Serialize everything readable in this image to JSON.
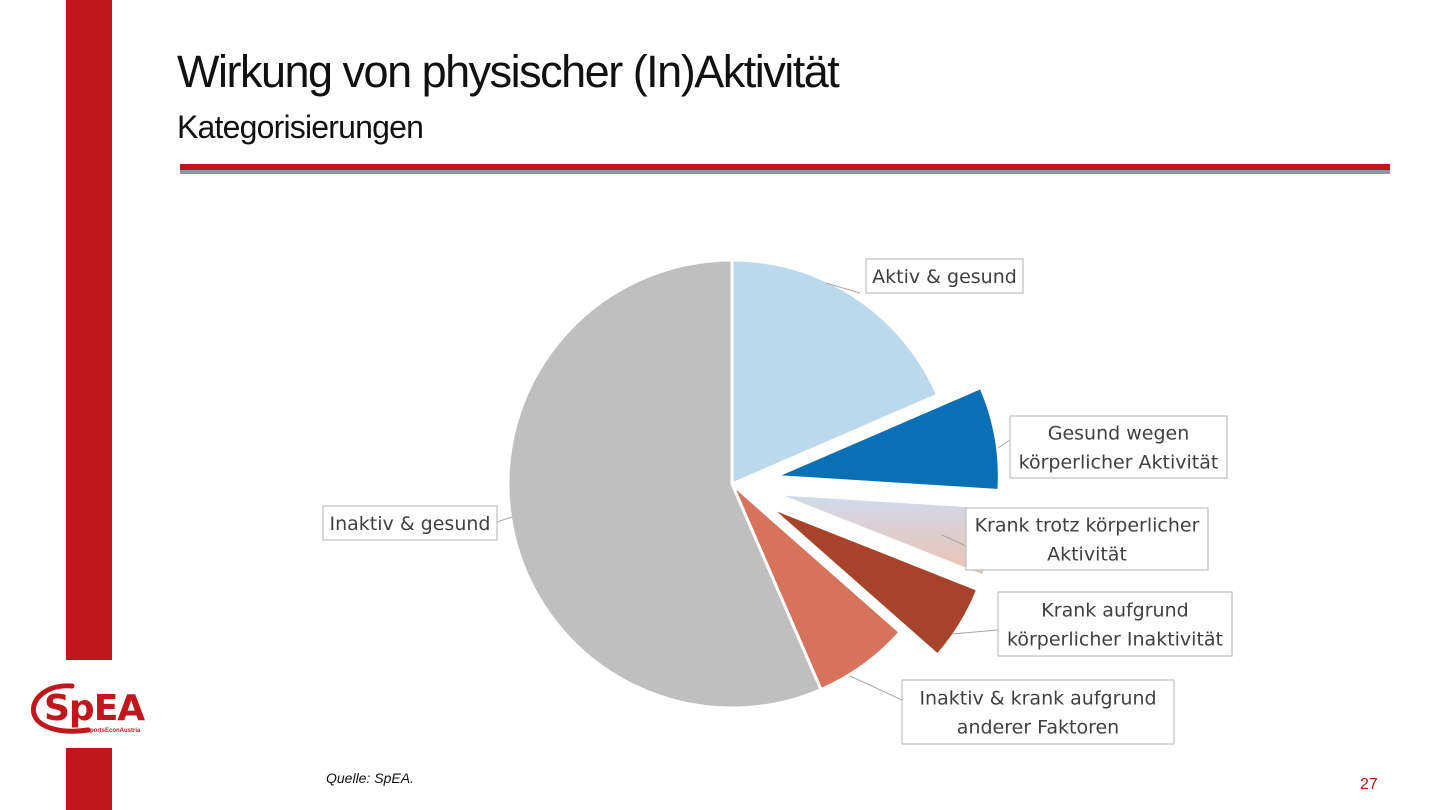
{
  "slide": {
    "title": "Wirkung von physischer (In)Aktivität",
    "subtitle": "Kategorisierungen",
    "source": "Quelle: SpEA.",
    "page_number": "27",
    "logo_text": "SpEA",
    "logo_tagline": "SportsEconAustria"
  },
  "colors": {
    "accent_red": "#c0171d",
    "rule_navy": "#2c3e66"
  },
  "chart_data": {
    "type": "pie",
    "title": "",
    "start_angle_deg": 0,
    "direction": "clockwise",
    "slices": [
      {
        "label": "Aktiv & gesund",
        "label_lines": [
          "Aktiv & gesund"
        ],
        "value": 18.5,
        "color": "#bbd8ed",
        "exploded": false
      },
      {
        "label": "Gesund wegen körperlicher Aktivität",
        "label_lines": [
          "Gesund wegen",
          "körperlicher Aktivität"
        ],
        "value": 7.5,
        "color": "#0a70b5",
        "exploded": true
      },
      {
        "label": "Krank trotz körperlicher Aktivität",
        "label_lines": [
          "Krank trotz körperlicher",
          "Aktivität"
        ],
        "value": 5.0,
        "color_from": "#cfdbec",
        "color_to": "#edc0b0",
        "exploded": true
      },
      {
        "label": "Krank aufgrund körperlicher Inaktivität",
        "label_lines": [
          "Krank aufgrund",
          "körperlicher Inaktivität"
        ],
        "value": 5.5,
        "color": "#a8432b",
        "exploded": true
      },
      {
        "label": "Inaktiv & krank aufgrund anderer Faktoren",
        "label_lines": [
          "Inaktiv & krank aufgrund",
          "anderer Faktoren"
        ],
        "value": 7.0,
        "color": "#d7735c",
        "exploded": false
      },
      {
        "label": "Inaktiv & gesund",
        "label_lines": [
          "Inaktiv & gesund"
        ],
        "value": 56.5,
        "color": "#bfbfbf",
        "exploded": false
      }
    ]
  }
}
